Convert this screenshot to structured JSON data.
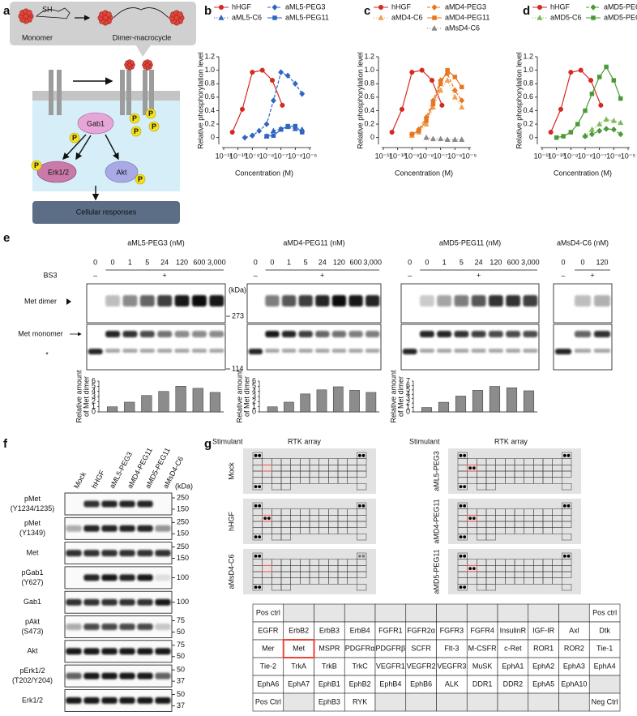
{
  "figure": {
    "panel_labels": [
      "a",
      "b",
      "c",
      "d",
      "e",
      "f",
      "g"
    ],
    "a": {
      "monomer": "Monomer",
      "dimer": "Dimer-macrocycle",
      "sh": "SH",
      "p": "P",
      "gab1": "Gab1",
      "erk": "Erk1/2",
      "akt": "Akt",
      "responses": "Cellular responses"
    },
    "e": {
      "blocks": [
        {
          "title": "aML5-PEG3 (nM)",
          "lanes": [
            "0",
            "0",
            "1",
            "5",
            "24",
            "120",
            "600",
            "3,000"
          ]
        },
        {
          "title": "aMD4-PEG11 (nM)",
          "lanes": [
            "0",
            "0",
            "1",
            "5",
            "24",
            "120",
            "600",
            "3,000"
          ]
        },
        {
          "title": "aMD5-PEG11 (nM)",
          "lanes": [
            "0",
            "0",
            "1",
            "5",
            "24",
            "120",
            "600",
            "3,000"
          ]
        },
        {
          "title": "aMsD4-C6 (nM)",
          "lanes": [
            "0",
            "0",
            "120"
          ]
        }
      ],
      "bs3": "BS3",
      "minus": "–",
      "plus": "+",
      "kda": "(kDa)",
      "markers": [
        "273",
        "114"
      ],
      "dimer": "Met dimer",
      "monomer": "Met monomer",
      "asterisk": "*"
    },
    "f": {
      "lanes": [
        "Mock",
        "hHGF",
        "aML5-PEG3",
        "aMD4-PEG11",
        "aMD5-PEG11",
        "aMsD4-C6"
      ],
      "kda": "(kDa)",
      "rows": [
        {
          "label": [
            "pMet",
            "(Y1234/1235)"
          ],
          "markers": [
            "250",
            "150"
          ]
        },
        {
          "label": [
            "pMet",
            "(Y1349)"
          ],
          "markers": [
            "250",
            "150"
          ]
        },
        {
          "label": [
            "Met"
          ],
          "markers": [
            "250",
            "150"
          ]
        },
        {
          "label": [
            "pGab1",
            "(Y627)"
          ],
          "markers": [
            "100"
          ]
        },
        {
          "label": [
            "Gab1"
          ],
          "markers": [
            "100"
          ]
        },
        {
          "label": [
            "pAkt",
            "(S473)"
          ],
          "markers": [
            "75",
            "50"
          ]
        },
        {
          "label": [
            "Akt"
          ],
          "markers": [
            "75",
            "50"
          ]
        },
        {
          "label": [
            "pErk1/2",
            "(T202/Y204)"
          ],
          "markers": [
            "50",
            "37"
          ]
        },
        {
          "label": [
            "Erk1/2"
          ],
          "markers": [
            "50",
            "37"
          ]
        }
      ]
    },
    "g": {
      "stimulant": "Stimulant",
      "rtk_array": "RTK array",
      "arrays": [
        "Mock",
        "hHGF",
        "aMsD4-C6",
        "aML5-PEG3",
        "aMD4-PEG11",
        "aMD5-PEG11"
      ],
      "table": [
        [
          "Pos ctrl",
          null,
          null,
          null,
          null,
          null,
          null,
          null,
          null,
          null,
          null,
          "Pos ctrl"
        ],
        [
          "EGFR",
          "ErbB2",
          "ErbB3",
          "ErbB4",
          "FGFR1",
          "FGFR2α",
          "FGFR3",
          "FGFR4",
          "InsulinR",
          "IGF-IR",
          "Axl",
          "Dtk"
        ],
        [
          "Mer",
          "Met",
          "MSPR",
          "PDGFRα",
          "PDGFRβ",
          "SCFR",
          "Flt-3",
          "M-CSFR",
          "c-Ret",
          "ROR1",
          "ROR2",
          "Tie-1"
        ],
        [
          "Tie-2",
          "TrkA",
          "TrkB",
          "TrkC",
          "VEGFR1",
          "VEGFR2",
          "VEGFR3",
          "MuSK",
          "EphA1",
          "EphA2",
          "EphA3",
          "EphA4"
        ],
        [
          "EphA6",
          "EphA7",
          "EphB1",
          "EphB2",
          "EphB4",
          "EphB6",
          "ALK",
          "DDR1",
          "DDR2",
          "EphA5",
          "EphA10",
          null
        ],
        [
          "Pos Ctrl",
          null,
          "EphB3",
          "RYK",
          null,
          null,
          null,
          null,
          null,
          null,
          null,
          "Neg Ctrl"
        ]
      ]
    }
  },
  "chart_data": [
    {
      "type": "line",
      "xlabel": "Concentration (M)",
      "ylabel": "Relative phosphorylation level",
      "xscale": "log",
      "xlim": [
        1e-11,
        1e-05
      ],
      "xticks": [
        {
          "value": 1e-11,
          "label": "10⁻¹¹"
        },
        {
          "value": 1e-10,
          "label": "10⁻¹⁰"
        },
        {
          "value": 1e-09,
          "label": "10⁻⁹"
        },
        {
          "value": 1e-08,
          "label": "10⁻⁸"
        },
        {
          "value": 1e-07,
          "label": "10⁻⁷"
        },
        {
          "value": 1e-06,
          "label": "10⁻⁶"
        },
        {
          "value": 1e-05,
          "label": "10⁻⁵"
        }
      ],
      "ylim": [
        -0.1,
        1.2
      ],
      "yticks": [
        0,
        0.2,
        0.4,
        0.6,
        0.8,
        {
          "value": 1,
          "label": "1.0"
        },
        1.2
      ],
      "series": [
        {
          "name": "hHGF",
          "color": "#d42a20",
          "marker": "circle",
          "dash": "solid",
          "x": [
            4e-11,
            2e-10,
            1e-09,
            5e-09,
            2.5e-08,
            1.25e-07
          ],
          "values": [
            0.08,
            0.42,
            0.97,
            1.0,
            0.85,
            0.48
          ]
        },
        {
          "name": "aML5-C6",
          "color": "#2f66c2",
          "marker": "triangle",
          "dash": "dotted",
          "x": [
            1e-08,
            3e-08,
            1e-07,
            3e-07,
            1e-06,
            3e-06
          ],
          "values": [
            0.02,
            0.1,
            0.13,
            0.16,
            0.13,
            0.12
          ]
        },
        {
          "name": "aML5-PEG3",
          "color": "#2f66c2",
          "marker": "diamond",
          "dash": "dashed",
          "x": [
            3e-10,
            1e-09,
            3e-09,
            1e-08,
            3e-08,
            1e-07,
            3e-07,
            1e-06,
            3e-06
          ],
          "values": [
            0.0,
            0.03,
            0.1,
            0.2,
            0.55,
            0.97,
            0.92,
            0.8,
            0.65
          ]
        },
        {
          "name": "aML5-PEG11",
          "color": "#2f66c2",
          "marker": "square",
          "dash": "solid",
          "x": [
            1e-08,
            3e-08,
            1e-07,
            3e-07,
            1e-06,
            3e-06
          ],
          "values": [
            0.02,
            0.03,
            0.12,
            0.17,
            0.17,
            0.08
          ]
        }
      ]
    },
    {
      "type": "line",
      "xlabel": "Concentration (M)",
      "ylabel": "Relative phosphorylation level",
      "xscale": "log",
      "xlim": [
        1e-11,
        1e-05
      ],
      "xticks": [
        {
          "value": 1e-11,
          "label": "10⁻¹¹"
        },
        {
          "value": 1e-10,
          "label": "10⁻¹⁰"
        },
        {
          "value": 1e-09,
          "label": "10⁻⁹"
        },
        {
          "value": 1e-08,
          "label": "10⁻⁸"
        },
        {
          "value": 1e-07,
          "label": "10⁻⁷"
        },
        {
          "value": 1e-06,
          "label": "10⁻⁶"
        },
        {
          "value": 1e-05,
          "label": "10⁻⁵"
        }
      ],
      "ylim": [
        -0.1,
        1.2
      ],
      "yticks": [
        0,
        0.2,
        0.4,
        0.6,
        0.8,
        {
          "value": 1,
          "label": "1.0"
        },
        1.2
      ],
      "series": [
        {
          "name": "hHGF",
          "color": "#d42a20",
          "marker": "circle",
          "dash": "solid",
          "x": [
            4e-11,
            2e-10,
            1e-09,
            5e-09,
            2.5e-08,
            1.25e-07
          ],
          "values": [
            0.08,
            0.42,
            0.97,
            1.0,
            0.85,
            0.48
          ]
        },
        {
          "name": "aMD4-C6",
          "color": "#f0a050",
          "marker": "triangle",
          "dash": "dotted",
          "x": [
            1e-09,
            3e-09,
            1e-08,
            3e-08,
            1e-07,
            3e-07,
            1e-06,
            3e-06
          ],
          "values": [
            0.03,
            0.08,
            0.2,
            0.45,
            0.7,
            0.85,
            0.6,
            0.45
          ]
        },
        {
          "name": "aMD4-PEG3",
          "color": "#e87722",
          "marker": "diamond",
          "dash": "dashed",
          "x": [
            1e-09,
            3e-09,
            1e-08,
            3e-08,
            1e-07,
            3e-07,
            1e-06,
            3e-06
          ],
          "values": [
            0.05,
            0.12,
            0.3,
            0.55,
            0.85,
            0.95,
            0.7,
            0.55
          ]
        },
        {
          "name": "aMD4-PEG11",
          "color": "#e87722",
          "marker": "square",
          "dash": "solid",
          "x": [
            1e-09,
            3e-09,
            1e-08,
            3e-08,
            1e-07,
            3e-07,
            1e-06,
            3e-06
          ],
          "values": [
            0.05,
            0.1,
            0.25,
            0.5,
            0.8,
            1.0,
            0.9,
            0.75
          ]
        },
        {
          "name": "aMsD4-C6",
          "color": "#8a8a8a",
          "marker": "triangle",
          "dash": "dotted",
          "x": [
            1e-08,
            3e-08,
            1e-07,
            3e-07,
            1e-06,
            3e-06
          ],
          "values": [
            0.0,
            -0.02,
            -0.02,
            -0.03,
            -0.03,
            -0.03
          ]
        }
      ]
    },
    {
      "type": "line",
      "xlabel": "Concentration (M)",
      "ylabel": "Relative phosphorylation level",
      "xscale": "log",
      "xlim": [
        1e-11,
        1e-05
      ],
      "xticks": [
        {
          "value": 1e-11,
          "label": "10⁻¹¹"
        },
        {
          "value": 1e-10,
          "label": "10⁻¹⁰"
        },
        {
          "value": 1e-09,
          "label": "10⁻⁹"
        },
        {
          "value": 1e-08,
          "label": "10⁻⁸"
        },
        {
          "value": 1e-07,
          "label": "10⁻⁷"
        },
        {
          "value": 1e-06,
          "label": "10⁻⁶"
        },
        {
          "value": 1e-05,
          "label": "10⁻⁵"
        }
      ],
      "ylim": [
        -0.1,
        1.2
      ],
      "yticks": [
        0,
        0.2,
        0.4,
        0.6,
        0.8,
        {
          "value": 1,
          "label": "1.0"
        },
        1.2
      ],
      "series": [
        {
          "name": "hHGF",
          "color": "#d42a20",
          "marker": "circle",
          "dash": "solid",
          "x": [
            4e-11,
            2e-10,
            1e-09,
            5e-09,
            2.5e-08,
            1.25e-07
          ],
          "values": [
            0.08,
            0.42,
            0.97,
            1.0,
            0.85,
            0.48
          ]
        },
        {
          "name": "aMD5-C6",
          "color": "#7dbb5a",
          "marker": "triangle",
          "dash": "dotted",
          "x": [
            1e-08,
            3e-08,
            1e-07,
            3e-07,
            1e-06,
            3e-06
          ],
          "values": [
            0.03,
            0.12,
            0.2,
            0.27,
            0.25,
            0.22
          ]
        },
        {
          "name": "aMD5-PEG3",
          "color": "#4a9a3a",
          "marker": "diamond",
          "dash": "dashed",
          "x": [
            1e-08,
            3e-08,
            1e-07,
            3e-07,
            1e-06,
            3e-06
          ],
          "values": [
            0.02,
            0.05,
            0.1,
            0.13,
            0.12,
            0.05
          ]
        },
        {
          "name": "aMD5-PEG11",
          "color": "#4a9a3a",
          "marker": "square",
          "dash": "solid",
          "x": [
            1e-10,
            3e-10,
            1e-09,
            3e-09,
            1e-08,
            3e-08,
            1e-07,
            3e-07,
            1e-06,
            3e-06
          ],
          "values": [
            0.0,
            0.02,
            0.08,
            0.2,
            0.4,
            0.65,
            0.9,
            1.05,
            0.85,
            0.58
          ]
        }
      ]
    },
    {
      "type": "bar",
      "ylabel": [
        "Relative amount",
        "of Met dimer"
      ],
      "color": "#8c8c8c",
      "ylim": [
        0,
        6
      ],
      "yticks": [
        0,
        1,
        2,
        3,
        4,
        5,
        6
      ],
      "values": [
        1.0,
        1.9,
        3.2,
        4.0,
        5.0,
        4.6,
        3.8
      ]
    },
    {
      "type": "bar",
      "ylabel": [
        "Relative amount",
        "of Met dimer"
      ],
      "color": "#8c8c8c",
      "ylim": [
        0,
        6
      ],
      "yticks": [
        0,
        1,
        2,
        3,
        4,
        5,
        6
      ],
      "values": [
        1.0,
        1.9,
        3.5,
        4.3,
        4.9,
        4.2,
        3.8
      ]
    },
    {
      "type": "bar",
      "ylabel": [
        "Relative amount",
        "of Met dimer"
      ],
      "color": "#8c8c8c",
      "ylim": [
        0,
        7
      ],
      "yticks": [
        0,
        1,
        2,
        3,
        4,
        5,
        6,
        7
      ],
      "values": [
        1.0,
        2.2,
        3.6,
        4.9,
        5.8,
        5.5,
        4.8
      ]
    }
  ]
}
